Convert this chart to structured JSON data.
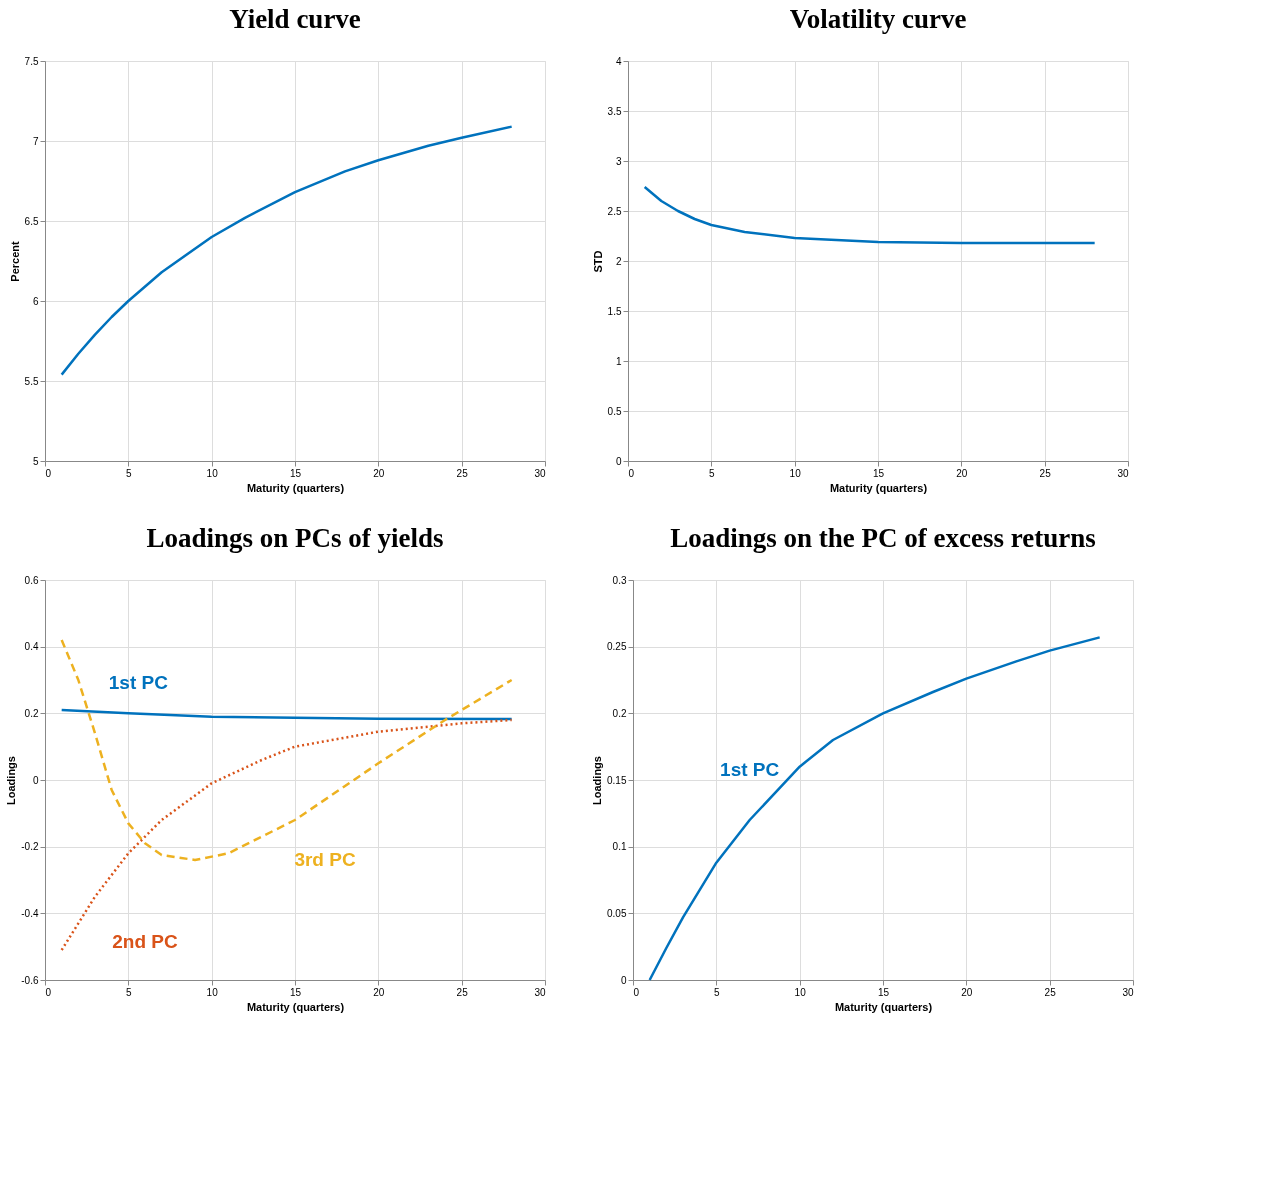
{
  "chart_data": [
    {
      "type": "line",
      "title": "Yield curve",
      "xlabel": "Maturity (quarters)",
      "ylabel": "Percent",
      "xlim": [
        0,
        30
      ],
      "xticks": [
        0,
        5,
        10,
        15,
        20,
        25,
        30
      ],
      "ylim": [
        5,
        7.5
      ],
      "yticks": [
        5,
        5.5,
        6,
        6.5,
        7,
        7.5
      ],
      "grid": true,
      "series": [
        {
          "color": "#0072bd",
          "line_style": "solid",
          "x": [
            1,
            2,
            3,
            4,
            5,
            7,
            10,
            12,
            15,
            18,
            20,
            23,
            25,
            28
          ],
          "values": [
            5.54,
            5.67,
            5.79,
            5.9,
            6.0,
            6.18,
            6.4,
            6.52,
            6.68,
            6.81,
            6.88,
            6.97,
            7.02,
            7.09
          ]
        }
      ]
    },
    {
      "type": "line",
      "title": "Volatility curve",
      "xlabel": "Maturity (quarters)",
      "ylabel": "STD",
      "xlim": [
        0,
        30
      ],
      "xticks": [
        0,
        5,
        10,
        15,
        20,
        25,
        30
      ],
      "ylim": [
        0,
        4
      ],
      "yticks": [
        0,
        0.5,
        1,
        1.5,
        2,
        2.5,
        3,
        3.5,
        4
      ],
      "grid": true,
      "series": [
        {
          "color": "#0072bd",
          "line_style": "solid",
          "x": [
            1,
            2,
            3,
            4,
            5,
            7,
            10,
            15,
            20,
            25,
            28
          ],
          "values": [
            2.74,
            2.6,
            2.5,
            2.42,
            2.36,
            2.29,
            2.23,
            2.19,
            2.18,
            2.18,
            2.18
          ]
        }
      ]
    },
    {
      "type": "line",
      "title": "Loadings on PCs of yields",
      "xlabel": "Maturity (quarters)",
      "ylabel": "Loadings",
      "xlim": [
        0,
        30
      ],
      "xticks": [
        0,
        5,
        10,
        15,
        20,
        25,
        30
      ],
      "ylim": [
        -0.6,
        0.6
      ],
      "yticks": [
        -0.6,
        -0.4,
        -0.2,
        0,
        0.2,
        0.4,
        0.6
      ],
      "grid": true,
      "series": [
        {
          "name": "1st PC",
          "color": "#0072bd",
          "line_style": "solid",
          "x": [
            1,
            5,
            10,
            15,
            20,
            28
          ],
          "values": [
            0.21,
            0.2,
            0.19,
            0.187,
            0.184,
            0.183
          ]
        },
        {
          "name": "2nd PC",
          "color": "#d95319",
          "line_style": "dotted",
          "x": [
            1,
            3,
            5,
            7,
            10,
            13,
            15,
            20,
            25,
            28
          ],
          "values": [
            -0.51,
            -0.35,
            -0.22,
            -0.12,
            -0.01,
            0.06,
            0.1,
            0.145,
            0.17,
            0.18
          ]
        },
        {
          "name": "3rd PC",
          "color": "#edb120",
          "line_style": "dashed",
          "x": [
            1,
            2,
            3,
            4,
            5,
            6,
            7,
            9,
            11,
            15,
            20,
            24,
            28
          ],
          "values": [
            0.42,
            0.3,
            0.14,
            -0.03,
            -0.13,
            -0.19,
            -0.225,
            -0.24,
            -0.22,
            -0.12,
            0.05,
            0.18,
            0.3
          ]
        }
      ]
    },
    {
      "type": "line",
      "title": "Loadings on the PC of excess returns",
      "xlabel": "Maturity (quarters)",
      "ylabel": "Loadings",
      "xlim": [
        0,
        30
      ],
      "xticks": [
        0,
        5,
        10,
        15,
        20,
        25,
        30
      ],
      "ylim": [
        0,
        0.3
      ],
      "yticks": [
        0,
        0.05,
        0.1,
        0.15,
        0.2,
        0.25,
        0.3
      ],
      "grid": true,
      "series": [
        {
          "name": "1st PC",
          "color": "#0072bd",
          "line_style": "solid",
          "x": [
            1,
            2,
            3,
            5,
            7,
            10,
            12,
            15,
            18,
            20,
            23,
            25,
            28
          ],
          "values": [
            0.0,
            0.024,
            0.047,
            0.088,
            0.12,
            0.16,
            0.18,
            0.2,
            0.216,
            0.226,
            0.239,
            0.247,
            0.257
          ]
        }
      ]
    }
  ]
}
